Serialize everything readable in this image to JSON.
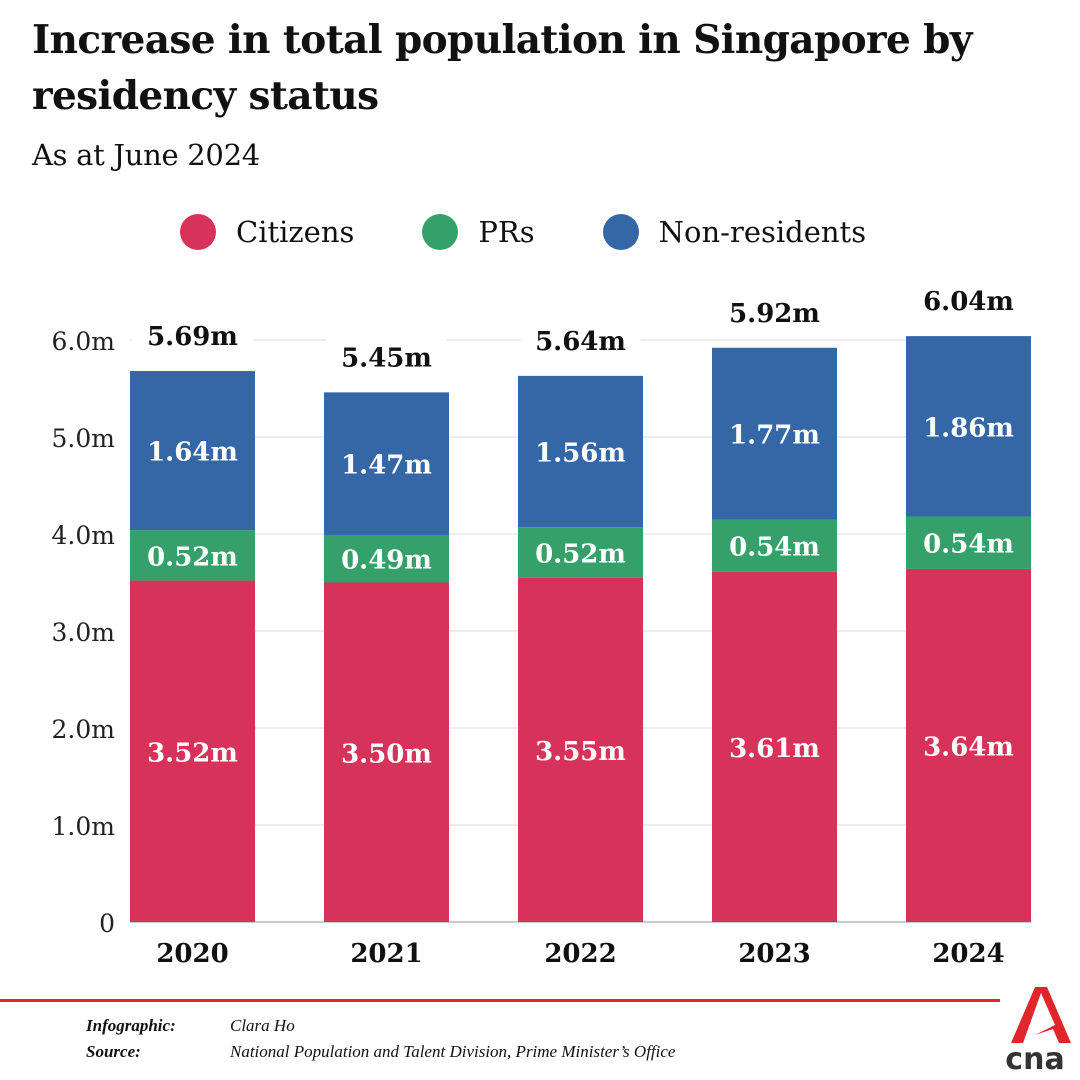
{
  "chart_data": {
    "type": "stacked-bar",
    "title": "Increase in total population in Singapore by residency status",
    "subtitle": "As at June 2024",
    "categories": [
      "2020",
      "2021",
      "2022",
      "2023",
      "2024"
    ],
    "series": [
      {
        "name": "Citizens",
        "color": "#d6325a",
        "values": [
          3.52,
          3.5,
          3.55,
          3.61,
          3.64
        ],
        "labels": [
          "3.52m",
          "3.50m",
          "3.55m",
          "3.61m",
          "3.64m"
        ]
      },
      {
        "name": "PRs",
        "color": "#35a06a",
        "values": [
          0.52,
          0.49,
          0.52,
          0.54,
          0.54
        ],
        "labels": [
          "0.52m",
          "0.49m",
          "0.52m",
          "0.54m",
          "0.54m"
        ]
      },
      {
        "name": "Non-residents",
        "color": "#3566a5",
        "values": [
          1.64,
          1.47,
          1.56,
          1.77,
          1.86
        ],
        "labels": [
          "1.64m",
          "1.47m",
          "1.56m",
          "1.77m",
          "1.86m"
        ]
      }
    ],
    "totals": [
      "5.69m",
      "5.45m",
      "5.64m",
      "5.92m",
      "6.04m"
    ],
    "y_ticks": [
      0,
      1,
      2,
      3,
      4,
      5,
      6
    ],
    "y_tick_labels": [
      "0",
      "1.0m",
      "2.0m",
      "3.0m",
      "4.0m",
      "5.0m",
      "6.0m"
    ],
    "ylim": [
      0,
      6
    ],
    "grid": true,
    "legend_position": "top"
  },
  "footer": {
    "infographic_label": "Infographic:",
    "infographic_value": "Clara Ho",
    "source_label": "Source:",
    "source_value": "National Population and Talent Division, Prime Minister’s Office"
  },
  "logo": {
    "text": "cna",
    "colors": {
      "red": "#e0262b",
      "text": "#333333"
    }
  }
}
